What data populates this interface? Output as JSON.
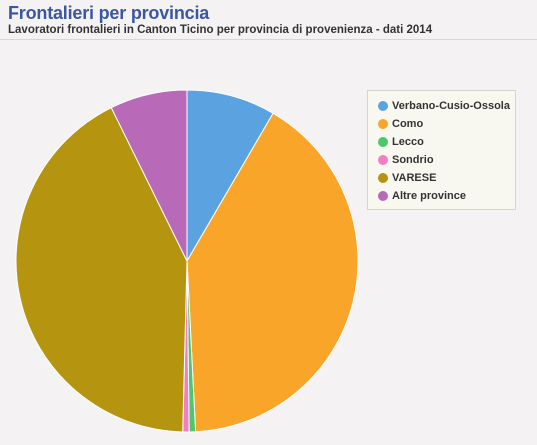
{
  "header": {
    "title": "Frontalieri per provincia",
    "subtitle": "Lavoratori frontalieri in Canton Ticino per provincia di provenienza - dati 2014"
  },
  "chart_data": {
    "type": "pie",
    "title": "Frontalieri per provincia",
    "subtitle": "Lavoratori frontalieri in Canton Ticino per provincia di provenienza - dati 2014",
    "legend_position": "right",
    "slices": [
      {
        "label": "Verbano-Cusio-Ossola",
        "value": 8.4,
        "color": "#5ba3e0"
      },
      {
        "label": "Como",
        "value": 40.8,
        "color": "#f9a52a"
      },
      {
        "label": "Lecco",
        "value": 0.6,
        "color": "#4ec66a"
      },
      {
        "label": "Sondrio",
        "value": 0.6,
        "color": "#f27ec4"
      },
      {
        "label": "VARESE",
        "value": 42.3,
        "color": "#b5950f"
      },
      {
        "label": "Altre province",
        "value": 7.3,
        "color": "#b86ab9"
      }
    ]
  }
}
